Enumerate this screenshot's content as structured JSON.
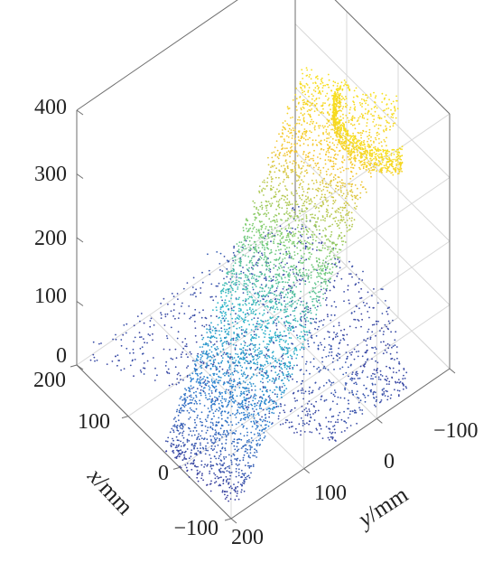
{
  "chart_data": {
    "type": "scatter",
    "subtype": "3d-point-cloud",
    "title": "",
    "xlabel": {
      "var": "x",
      "unit": "/mm"
    },
    "ylabel": {
      "var": "y",
      "unit": "/mm"
    },
    "zlabel": "",
    "xlim": [
      -100,
      200
    ],
    "ylim": [
      -100,
      200
    ],
    "zlim": [
      0,
      400
    ],
    "x_ticks": [
      "200",
      "100",
      "0",
      "−100"
    ],
    "y_ticks": [
      "200",
      "100",
      "0",
      "−100"
    ],
    "z_ticks": [
      "0",
      "100",
      "200",
      "300",
      "400"
    ],
    "grid": true,
    "colormap": "parula",
    "color_by": "z",
    "colormap_stops": [
      "#3b3f9c",
      "#2c7fd0",
      "#2cb6c8",
      "#7ccc6e",
      "#f4c430",
      "#f7e01c"
    ],
    "series": [
      {
        "name": "",
        "shape": "base surface",
        "points": [
          {
            "x": 200,
            "y": 50,
            "z": 10
          },
          {
            "x": 100,
            "y": 50,
            "z": 10
          },
          {
            "x": 0,
            "y": 50,
            "z": 5
          },
          {
            "x": -100,
            "y": 50,
            "z": 0
          },
          {
            "x": 200,
            "y": -50,
            "z": 10
          },
          {
            "x": 100,
            "y": -50,
            "z": 10
          },
          {
            "x": 0,
            "y": -50,
            "z": 5
          },
          {
            "x": -100,
            "y": -50,
            "z": 0
          },
          {
            "x": 200,
            "y": 200,
            "z": 0
          },
          {
            "x": -100,
            "y": 200,
            "z": 0
          }
        ]
      },
      {
        "name": "",
        "shape": "vertical wall",
        "points": [
          {
            "x": -100,
            "y": 200,
            "z": 0
          },
          {
            "x": -100,
            "y": 100,
            "z": 150
          },
          {
            "x": -100,
            "y": 50,
            "z": 250
          },
          {
            "x": -100,
            "y": 0,
            "z": 350
          },
          {
            "x": -100,
            "y": -30,
            "z": 400
          },
          {
            "x": 0,
            "y": 200,
            "z": 0
          },
          {
            "x": 0,
            "y": 100,
            "z": 200
          },
          {
            "x": 0,
            "y": 0,
            "z": 400
          },
          {
            "x": 100,
            "y": 100,
            "z": 150
          },
          {
            "x": 100,
            "y": 0,
            "z": 400
          }
        ]
      }
    ]
  }
}
